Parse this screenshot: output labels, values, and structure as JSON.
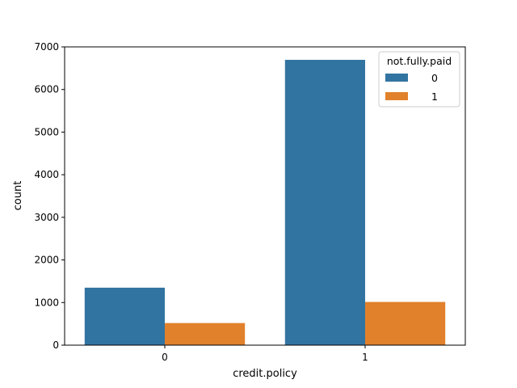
{
  "chart_data": {
    "type": "bar",
    "title": "",
    "xlabel": "credit.policy",
    "ylabel": "count",
    "categories": [
      "0",
      "1"
    ],
    "series": [
      {
        "name": "0",
        "values": [
          1349,
          6696
        ],
        "color": "#3274a1"
      },
      {
        "name": "1",
        "values": [
          519,
          1014
        ],
        "color": "#e1812c"
      }
    ],
    "ylim": [
      0,
      7000
    ],
    "yticks": [
      "0",
      "1000",
      "2000",
      "3000",
      "4000",
      "5000",
      "6000",
      "7000"
    ],
    "legend": {
      "title": "not.fully.paid",
      "placement": "top-right"
    },
    "grid": false
  }
}
